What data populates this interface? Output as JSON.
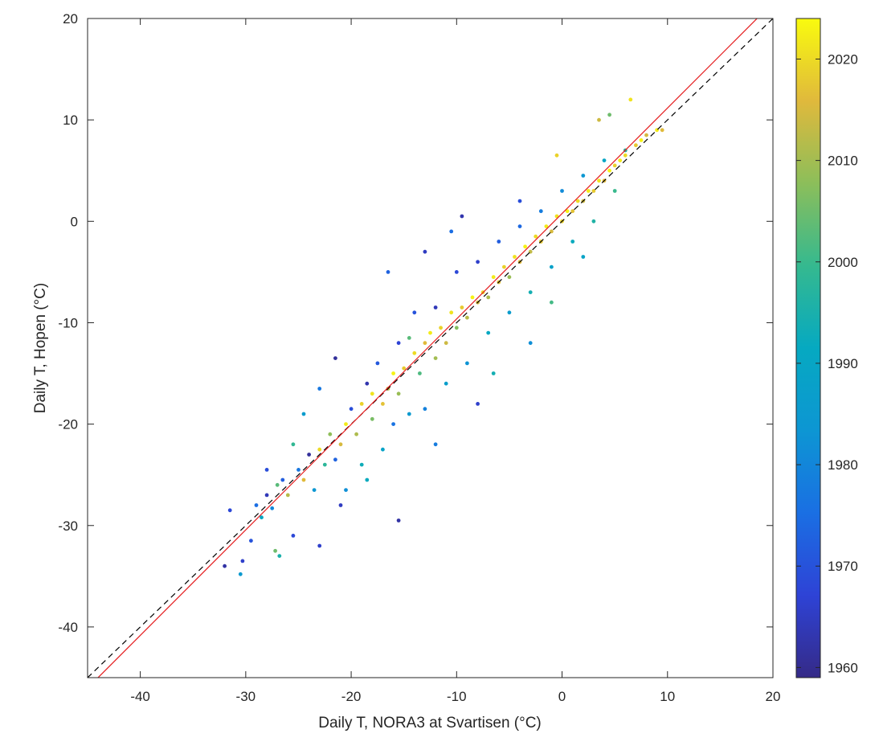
{
  "chart_data": {
    "type": "scatter",
    "title": "",
    "xlabel": "Daily T, NORA3 at Svartisen (°C)",
    "ylabel": "Daily T, Hopen (°C)",
    "xlim": [
      -45,
      20
    ],
    "ylim": [
      -45,
      20
    ],
    "x_ticks": [
      -40,
      -30,
      -20,
      -10,
      0,
      10,
      20
    ],
    "y_ticks": [
      -40,
      -30,
      -20,
      -10,
      0,
      10,
      20
    ],
    "x_tick_labels": [
      "-40",
      "-30",
      "-20",
      "-10",
      "0",
      "10",
      "20"
    ],
    "y_tick_labels": [
      "-40",
      "-30",
      "-20",
      "-10",
      "0",
      "10",
      "20"
    ],
    "grid": false,
    "colorbar": {
      "label": "",
      "range": [
        1959,
        2024
      ],
      "ticks": [
        1960,
        1970,
        1980,
        1990,
        2000,
        2010,
        2020
      ],
      "tick_labels": [
        "1960",
        "1970",
        "1980",
        "1990",
        "2000",
        "2010",
        "2020"
      ],
      "colormap": "parula"
    },
    "reference_lines": [
      {
        "kind": "identity (1:1)",
        "slope": 1,
        "intercept": 0,
        "style": "dashed",
        "color": "#000000"
      },
      {
        "kind": "regression fit",
        "slope": 1.04,
        "intercept": 0.77,
        "style": "solid",
        "color": "#e41a1c"
      }
    ],
    "points": [
      [
        -32.0,
        -34.0,
        1962
      ],
      [
        -30.5,
        -34.8,
        1985
      ],
      [
        -30.3,
        -33.5,
        1966
      ],
      [
        -29.5,
        -31.5,
        1970
      ],
      [
        -31.5,
        -28.5,
        1968
      ],
      [
        -29.0,
        -28.0,
        1975
      ],
      [
        -28.5,
        -29.2,
        1990
      ],
      [
        -28.0,
        -27.0,
        1964
      ],
      [
        -27.5,
        -28.3,
        1980
      ],
      [
        -27.0,
        -26.0,
        2003
      ],
      [
        -26.5,
        -25.5,
        1972
      ],
      [
        -26.0,
        -27.0,
        2012
      ],
      [
        -27.2,
        -32.5,
        2005
      ],
      [
        -26.8,
        -33.0,
        1995
      ],
      [
        -25.5,
        -31.0,
        1968
      ],
      [
        -25.0,
        -24.5,
        1977
      ],
      [
        -24.5,
        -25.5,
        2016
      ],
      [
        -24.0,
        -23.0,
        1961
      ],
      [
        -23.5,
        -26.5,
        1984
      ],
      [
        -23.0,
        -32.0,
        1966
      ],
      [
        -23.0,
        -22.5,
        2020
      ],
      [
        -22.5,
        -24.0,
        1998
      ],
      [
        -22.0,
        -21.0,
        2008
      ],
      [
        -21.5,
        -23.5,
        1973
      ],
      [
        -21.0,
        -22.0,
        2015
      ],
      [
        -21.0,
        -28.0,
        1965
      ],
      [
        -20.5,
        -20.0,
        2022
      ],
      [
        -20.5,
        -26.5,
        1982
      ],
      [
        -20.0,
        -18.5,
        1969
      ],
      [
        -19.5,
        -21.0,
        2011
      ],
      [
        -19.0,
        -18.0,
        2019
      ],
      [
        -19.0,
        -24.0,
        1993
      ],
      [
        -18.5,
        -16.0,
        1963
      ],
      [
        -18.0,
        -19.5,
        2006
      ],
      [
        -18.0,
        -17.0,
        2021
      ],
      [
        -17.5,
        -14.0,
        1971
      ],
      [
        -17.0,
        -18.0,
        2017
      ],
      [
        -17.0,
        -22.5,
        1989
      ],
      [
        -16.5,
        -16.5,
        2013
      ],
      [
        -16.0,
        -15.0,
        2023
      ],
      [
        -16.0,
        -20.0,
        1976
      ],
      [
        -15.5,
        -12.0,
        1967
      ],
      [
        -15.5,
        -17.0,
        2009
      ],
      [
        -15.0,
        -14.5,
        2018
      ],
      [
        -15.5,
        -29.5,
        1962
      ],
      [
        -14.5,
        -19.0,
        1985
      ],
      [
        -14.0,
        -13.0,
        2020
      ],
      [
        -14.0,
        -9.0,
        1970
      ],
      [
        -13.5,
        -15.0,
        2002
      ],
      [
        -13.0,
        -12.0,
        2016
      ],
      [
        -13.0,
        -18.5,
        1979
      ],
      [
        -12.5,
        -11.0,
        2022
      ],
      [
        -12.0,
        -13.5,
        2010
      ],
      [
        -12.0,
        -8.5,
        1964
      ],
      [
        -11.5,
        -10.5,
        2019
      ],
      [
        -11.0,
        -12.0,
        2014
      ],
      [
        -11.0,
        -16.0,
        1987
      ],
      [
        -10.5,
        -9.0,
        2021
      ],
      [
        -10.0,
        -10.5,
        2007
      ],
      [
        -10.0,
        -5.0,
        1968
      ],
      [
        -9.5,
        -8.5,
        2018
      ],
      [
        -9.0,
        -9.5,
        2012
      ],
      [
        -9.0,
        -14.0,
        1983
      ],
      [
        -8.5,
        -7.5,
        2023
      ],
      [
        -8.0,
        -8.0,
        2015
      ],
      [
        -8.0,
        -4.0,
        1966
      ],
      [
        -7.5,
        -7.0,
        2020
      ],
      [
        -7.0,
        -7.5,
        2011
      ],
      [
        -7.0,
        -11.0,
        1991
      ],
      [
        -6.5,
        -5.5,
        2022
      ],
      [
        -6.0,
        -6.0,
        2017
      ],
      [
        -6.0,
        -2.0,
        1972
      ],
      [
        -5.5,
        -4.5,
        2019
      ],
      [
        -5.0,
        -5.5,
        2009
      ],
      [
        -5.0,
        -9.0,
        1986
      ],
      [
        -4.5,
        -3.5,
        2021
      ],
      [
        -4.0,
        -4.0,
        2016
      ],
      [
        -4.0,
        -0.5,
        1974
      ],
      [
        -3.5,
        -2.5,
        2023
      ],
      [
        -3.0,
        -3.0,
        2013
      ],
      [
        -3.0,
        -7.0,
        1994
      ],
      [
        -2.5,
        -1.5,
        2020
      ],
      [
        -2.0,
        -2.0,
        2018
      ],
      [
        -2.0,
        1.0,
        1978
      ],
      [
        -1.5,
        -0.5,
        2022
      ],
      [
        -1.0,
        -1.0,
        2015
      ],
      [
        -1.0,
        -4.5,
        1988
      ],
      [
        -0.5,
        0.5,
        2021
      ],
      [
        0.0,
        0.0,
        2019
      ],
      [
        0.0,
        3.0,
        1981
      ],
      [
        0.5,
        1.0,
        2023
      ],
      [
        1.0,
        1.0,
        2017
      ],
      [
        1.0,
        -2.0,
        1992
      ],
      [
        1.5,
        2.0,
        2020
      ],
      [
        2.0,
        2.0,
        2014
      ],
      [
        2.0,
        4.5,
        1984
      ],
      [
        2.5,
        3.0,
        2022
      ],
      [
        3.0,
        3.0,
        2018
      ],
      [
        3.0,
        0.0,
        1996
      ],
      [
        3.5,
        4.0,
        2021
      ],
      [
        4.0,
        4.0,
        2016
      ],
      [
        4.0,
        6.0,
        1990
      ],
      [
        4.5,
        5.0,
        2023
      ],
      [
        5.0,
        5.5,
        2019
      ],
      [
        5.0,
        3.0,
        2000
      ],
      [
        5.5,
        6.0,
        2022
      ],
      [
        6.0,
        6.5,
        2020
      ],
      [
        6.0,
        7.0,
        1997
      ],
      [
        6.5,
        12.0,
        2021
      ],
      [
        7.0,
        7.5,
        2018
      ],
      [
        7.5,
        8.0,
        2023
      ],
      [
        8.0,
        8.5,
        2015
      ],
      [
        9.0,
        9.0,
        2022
      ],
      [
        9.5,
        9.0,
        2016
      ],
      [
        4.5,
        10.5,
        2005
      ],
      [
        3.5,
        10.0,
        2014
      ],
      [
        -0.5,
        6.5,
        2019
      ],
      [
        -4.0,
        2.0,
        1969
      ],
      [
        -9.5,
        0.5,
        1963
      ],
      [
        -10.5,
        -1.0,
        1975
      ],
      [
        -13.0,
        -3.0,
        1965
      ],
      [
        -16.5,
        -5.0,
        1973
      ],
      [
        -14.5,
        -11.5,
        2003
      ],
      [
        -21.5,
        -13.5,
        1961
      ],
      [
        -23.0,
        -16.5,
        1977
      ],
      [
        -24.5,
        -19.0,
        1986
      ],
      [
        -25.5,
        -22.0,
        1999
      ],
      [
        -28.0,
        -24.5,
        1969
      ],
      [
        -3.0,
        -12.0,
        1982
      ],
      [
        -8.0,
        -18.0,
        1966
      ],
      [
        -12.0,
        -22.0,
        1978
      ],
      [
        -6.5,
        -15.0,
        1994
      ],
      [
        -1.0,
        -8.0,
        2001
      ],
      [
        2.0,
        -3.5,
        1989
      ],
      [
        -18.5,
        -25.5,
        1992
      ]
    ]
  }
}
